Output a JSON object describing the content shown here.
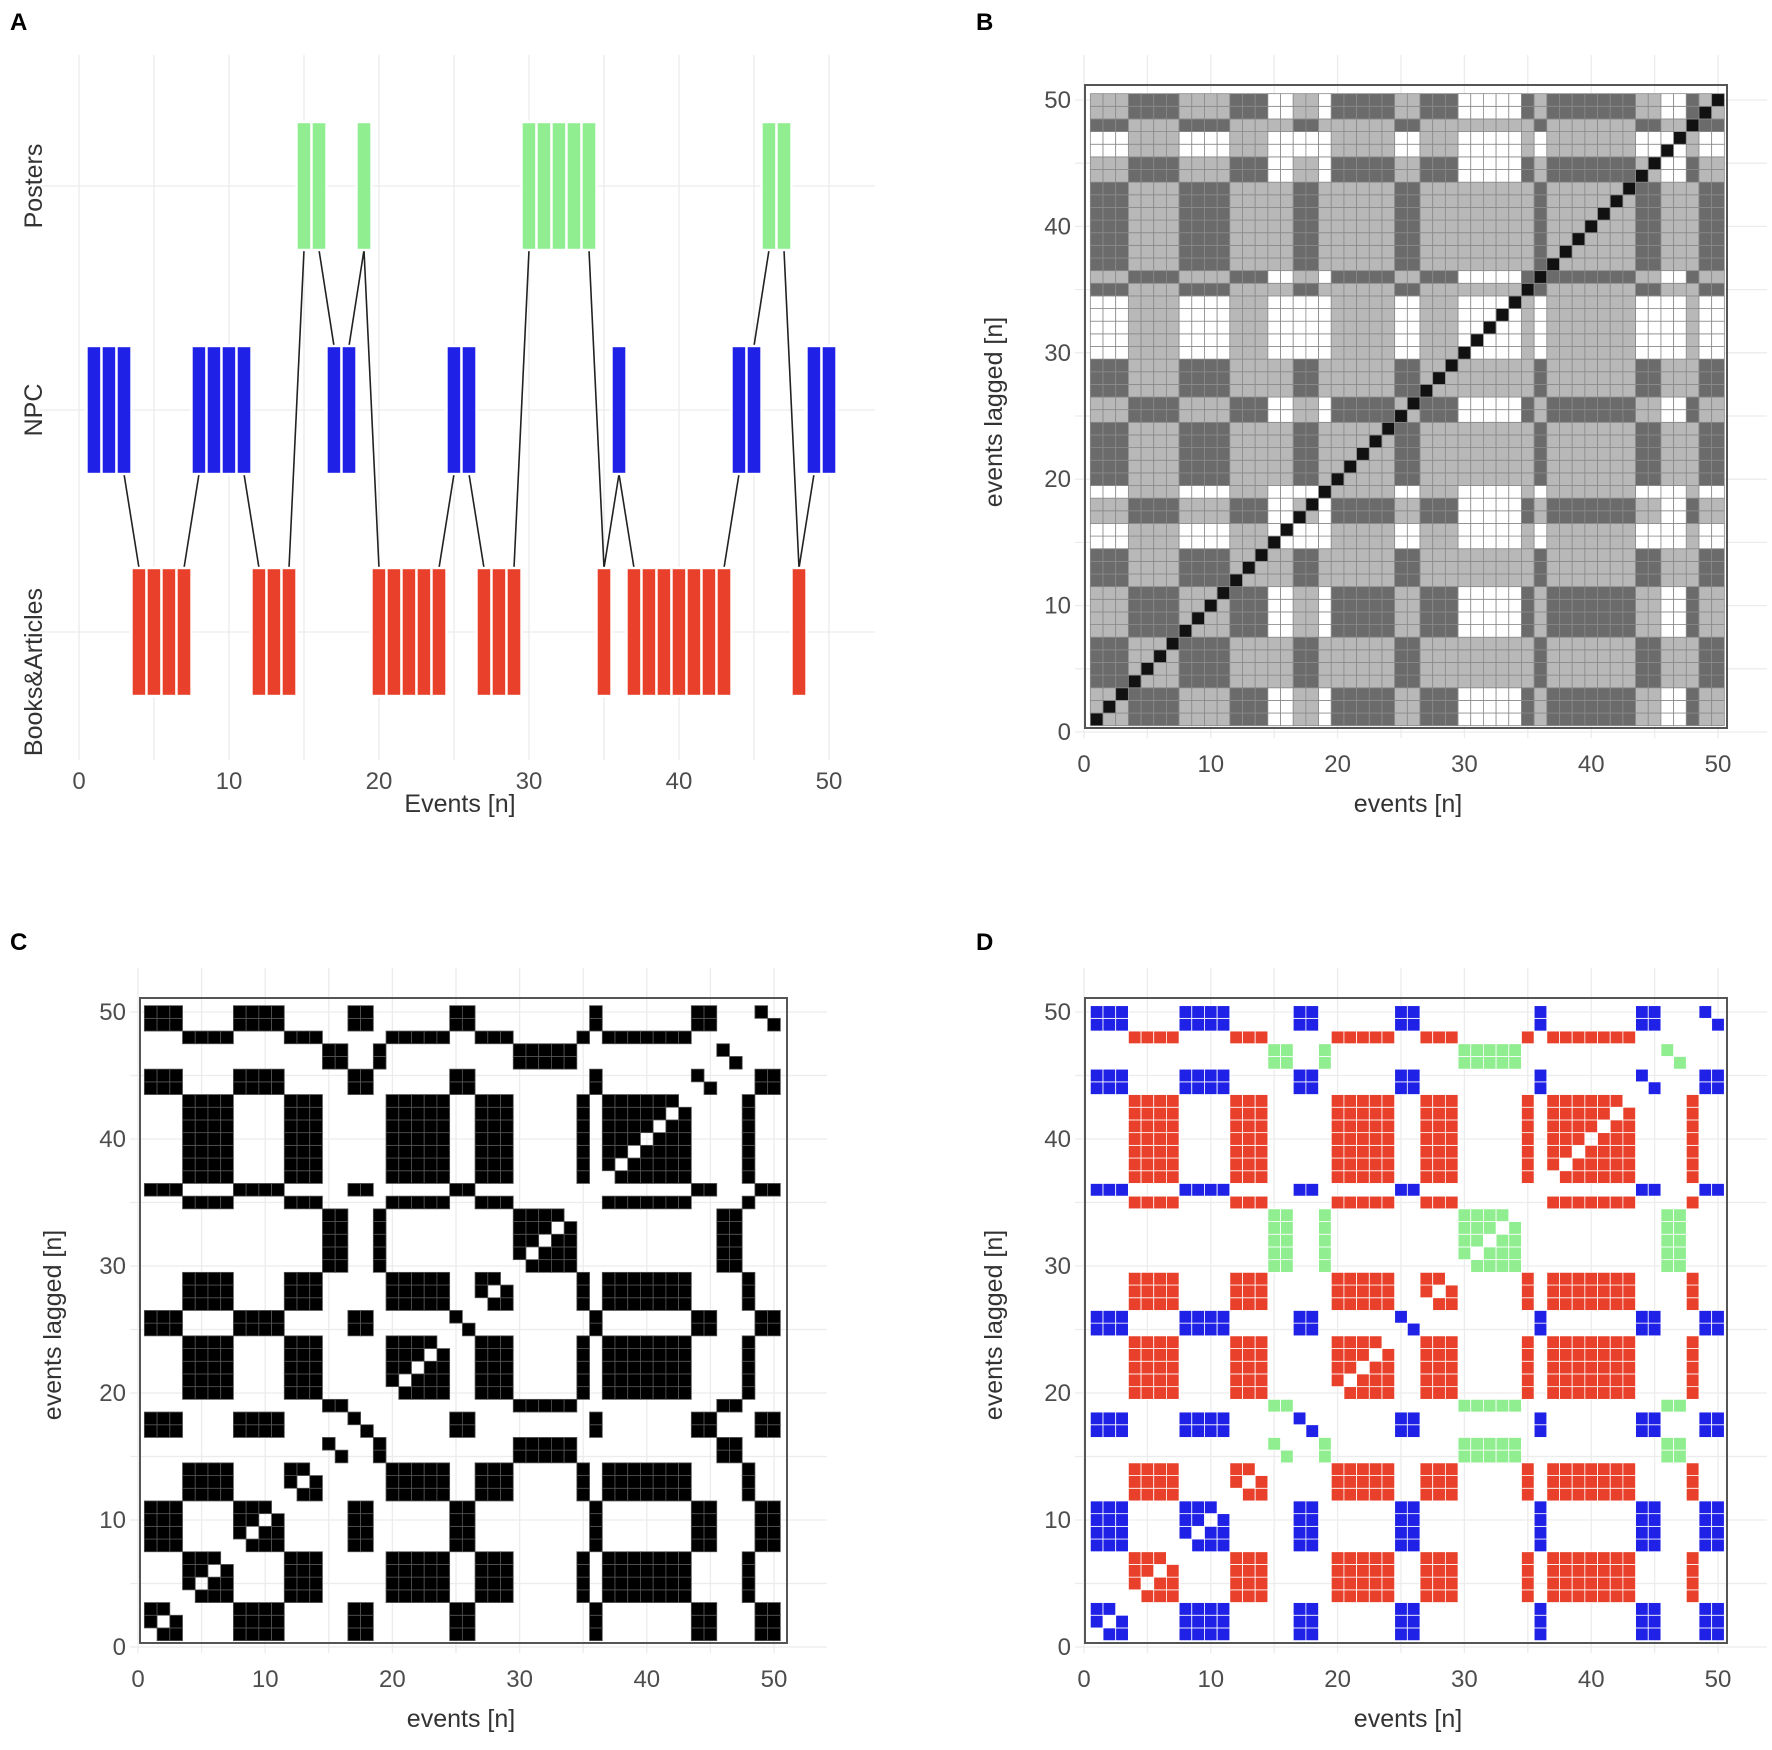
{
  "colors": {
    "posters": "#90ee90",
    "npc": "#1f22e6",
    "books": "#e8402a",
    "lag_dark": "#6b6b6b",
    "lag_mid": "#b8b8b8",
    "lag_light": "#ffffff",
    "diagonal": "#111111",
    "recurrence": "#000000"
  },
  "chart_data": [
    {
      "panel": "A",
      "type": "bar",
      "xlabel": "Events [n]",
      "ylabel": "",
      "xlim": [
        0,
        51
      ],
      "xticks": [
        0,
        10,
        20,
        30,
        40,
        50
      ],
      "categories": [
        "Books&Articles",
        "NPC",
        "Posters"
      ],
      "sequence": [
        2,
        2,
        2,
        1,
        1,
        1,
        1,
        2,
        2,
        2,
        2,
        1,
        1,
        1,
        3,
        3,
        2,
        2,
        3,
        1,
        1,
        1,
        1,
        1,
        2,
        2,
        1,
        1,
        1,
        3,
        3,
        3,
        3,
        3,
        1,
        2,
        1,
        1,
        1,
        1,
        1,
        1,
        1,
        2,
        2,
        3,
        3,
        1,
        2,
        2
      ],
      "x": [
        1,
        2,
        3,
        4,
        5,
        6,
        7,
        8,
        9,
        10,
        11,
        12,
        13,
        14,
        15,
        16,
        17,
        18,
        19,
        20,
        21,
        22,
        23,
        24,
        25,
        26,
        27,
        28,
        29,
        30,
        31,
        32,
        33,
        34,
        35,
        36,
        37,
        38,
        39,
        40,
        41,
        42,
        43,
        44,
        45,
        46,
        47,
        48,
        49,
        50
      ]
    },
    {
      "panel": "B",
      "type": "heatmap",
      "xlabel": "events [n]",
      "ylabel": "events lagged [n]",
      "xlim": [
        0,
        51
      ],
      "ylim": [
        0,
        51
      ],
      "xticks": [
        0,
        10,
        20,
        30,
        40,
        50
      ],
      "yticks": [
        0,
        10,
        20,
        30,
        40,
        50
      ],
      "description_value": "shading by category combination of event pair; diagonal marks identical events"
    },
    {
      "panel": "C",
      "type": "heatmap",
      "xlabel": "events [n]",
      "ylabel": "events lagged [n]",
      "xlim": [
        0,
        51
      ],
      "ylim": [
        0,
        51
      ],
      "xticks": [
        0,
        10,
        20,
        30,
        40,
        50
      ],
      "yticks": [
        0,
        10,
        20,
        30,
        40,
        50
      ]
    },
    {
      "panel": "D",
      "type": "heatmap",
      "xlabel": "events [n]",
      "ylabel": "events lagged [n]",
      "xlim": [
        0,
        51
      ],
      "ylim": [
        0,
        51
      ],
      "xticks": [
        0,
        10,
        20,
        30,
        40,
        50
      ],
      "yticks": [
        0,
        10,
        20,
        30,
        40,
        50
      ]
    }
  ],
  "panels": {
    "A": {
      "label": "A"
    },
    "B": {
      "label": "B"
    },
    "C": {
      "label": "C"
    },
    "D": {
      "label": "D"
    }
  }
}
